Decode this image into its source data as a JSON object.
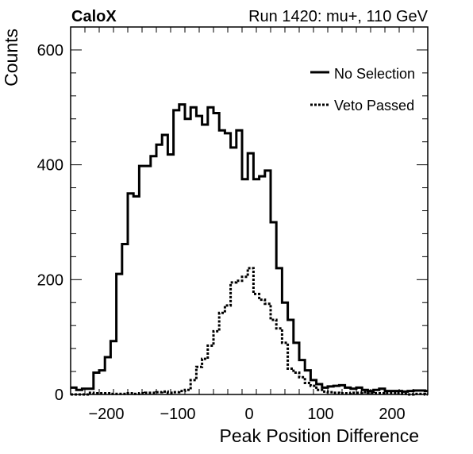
{
  "header": {
    "experiment": "CaloX",
    "run_info": "Run 1420: mu+, 110 GeV"
  },
  "chart_data": {
    "type": "line",
    "style": "step-histogram",
    "xlabel": "Peak Position Difference",
    "ylabel": "Counts",
    "xlim": [
      -250,
      250
    ],
    "ylim": [
      0,
      640
    ],
    "x_ticks": [
      -200,
      -100,
      0,
      100,
      200
    ],
    "x_tick_labels": [
      "−200",
      "−100",
      "0",
      "100",
      "200"
    ],
    "y_ticks": [
      0,
      200,
      400,
      600
    ],
    "y_tick_labels": [
      "0",
      "200",
      "400",
      "600"
    ],
    "bin_edges_start": -250,
    "bin_width": 8,
    "legend_position": "top-right",
    "series": [
      {
        "name": "No Selection",
        "line_style": "solid",
        "values": [
          12,
          8,
          10,
          10,
          38,
          42,
          65,
          93,
          210,
          262,
          350,
          345,
          398,
          398,
          415,
          435,
          452,
          418,
          495,
          505,
          480,
          500,
          485,
          470,
          500,
          490,
          460,
          455,
          430,
          460,
          375,
          420,
          375,
          380,
          390,
          300,
          220,
          160,
          130,
          90,
          60,
          42,
          25,
          18,
          12,
          14,
          15,
          16,
          12,
          10,
          12,
          8,
          6,
          8,
          10,
          6,
          6,
          6,
          5,
          6,
          7,
          7,
          6
        ]
      },
      {
        "name": "Veto Passed",
        "line_style": "dotted",
        "values": [
          0,
          0,
          0,
          3,
          2,
          2,
          2,
          1,
          1,
          1,
          2,
          1,
          2,
          3,
          3,
          4,
          5,
          3,
          4,
          6,
          8,
          25,
          48,
          62,
          85,
          110,
          142,
          155,
          195,
          198,
          205,
          220,
          175,
          165,
          158,
          130,
          115,
          90,
          45,
          38,
          30,
          20,
          15,
          8,
          5,
          4,
          3,
          2,
          2,
          3,
          3,
          4,
          3,
          2,
          2,
          3,
          3,
          2,
          1,
          0,
          1,
          1,
          0
        ]
      }
    ]
  }
}
